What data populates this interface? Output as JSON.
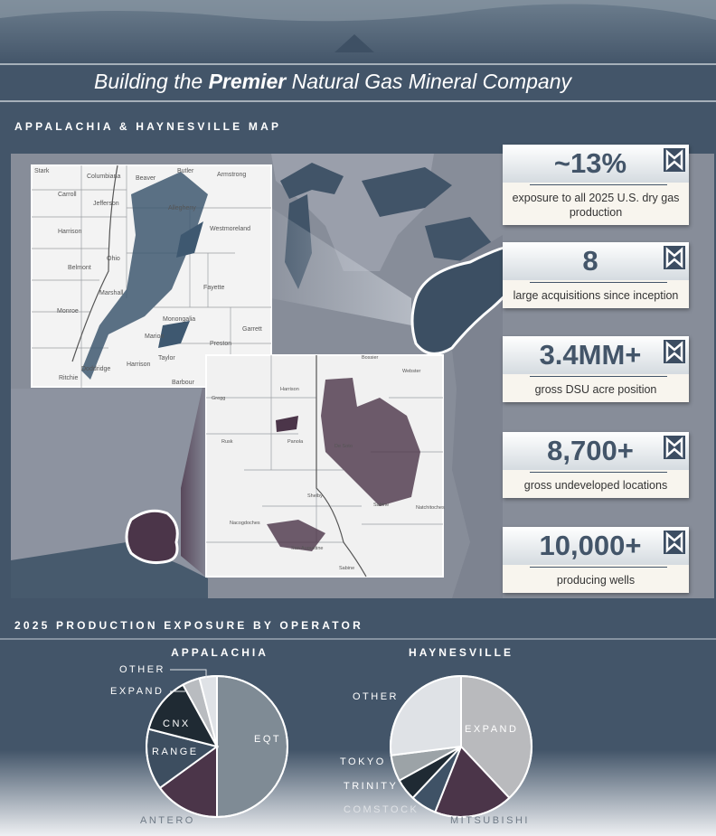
{
  "header": {
    "title_before": "Building the",
    "title_bold": "Premier",
    "title_after": "Natural Gas Mineral Company"
  },
  "map_section": {
    "title": "APPALACHIA & HAYNESVILLE MAP",
    "appalachia_counties": [
      "Stark",
      "Columbiana",
      "Beaver",
      "Butler",
      "Armstrong",
      "Carroll",
      "Harrison",
      "Jefferson",
      "Allegheny",
      "Westmoreland",
      "Belmont",
      "Ohio",
      "Fayette",
      "Monroe",
      "Marshall",
      "Monongalia",
      "Marion",
      "Preston",
      "Garrett",
      "Ritchie",
      "Doddridge",
      "Harrison",
      "Taylor",
      "Barbour"
    ],
    "haynesville_counties": [
      "Bossier",
      "Webster",
      "Gregg",
      "Harrison",
      "Rusk",
      "Panola",
      "De Soto",
      "Shelby",
      "Nacogdoches",
      "San Augustine",
      "Sabine",
      "Natchitoches",
      "Sabine"
    ]
  },
  "stats": [
    {
      "value": "~13%",
      "label": "exposure to all 2025 U.S. dry gas production"
    },
    {
      "value": "8",
      "label": "large acquisitions since inception"
    },
    {
      "value": "3.4MM+",
      "label": "gross DSU acre position"
    },
    {
      "value": "8,700+",
      "label": "gross undeveloped locations"
    },
    {
      "value": "10,000+",
      "label": "producing wells"
    }
  ],
  "production_section": {
    "title": "2025 PRODUCTION EXPOSURE BY OPERATOR"
  },
  "chart_data": [
    {
      "type": "pie",
      "title": "APPALACHIA",
      "categories": [
        "EQT",
        "ANTERO",
        "RANGE",
        "CNX",
        "EXPAND",
        "OTHER"
      ],
      "values": [
        50,
        15,
        14,
        13,
        4,
        4
      ],
      "colors": [
        "#7f8b95",
        "#4b3549",
        "#3d4e60",
        "#1f2a33",
        "#b9bcc0",
        "#dfe2e6"
      ]
    },
    {
      "type": "pie",
      "title": "HAYNESVILLE",
      "categories": [
        "EXPAND",
        "MITSUBISHI",
        "COMSTOCK",
        "TRINITY",
        "TOKYO",
        "OTHER"
      ],
      "values": [
        38,
        18,
        6,
        5,
        6,
        27
      ],
      "colors": [
        "#b9babd",
        "#4b3549",
        "#3f5266",
        "#1f2a33",
        "#9ca3a7",
        "#dfe2e6"
      ]
    }
  ]
}
